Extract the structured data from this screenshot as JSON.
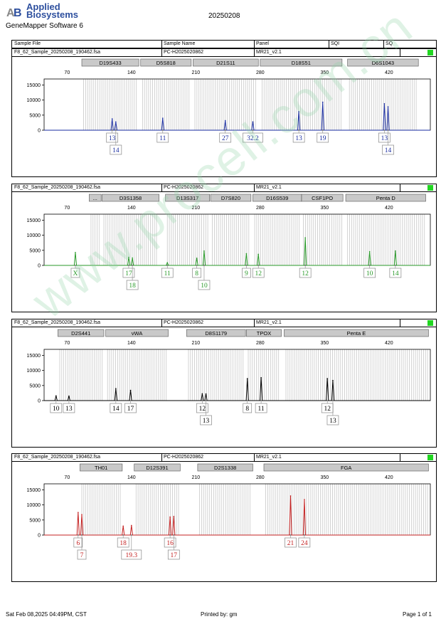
{
  "header": {
    "brand_line1": "Applied",
    "brand_line2": "Biosystems",
    "software": "GeneMapper Software 6",
    "date": "20250208"
  },
  "columns": [
    "Sample File",
    "Sample Name",
    "Panel",
    "SQI",
    "SQ"
  ],
  "sample": {
    "file": "F8_62_Sample_20250208_190462.fsa",
    "name": "PC-H2025020862",
    "panel": "MR21_v2.1"
  },
  "footer": {
    "left": "Sat Feb 08,2025 04:49PM, CST",
    "center": "Printed by: gm",
    "right": "Page 1 of 1"
  },
  "watermark": "www.procell.com.cn",
  "chart_data": [
    {
      "type": "line",
      "color": "#1a2da0",
      "x_ticks": [
        70,
        140,
        210,
        280,
        350,
        420
      ],
      "y_ticks": [
        0,
        5000,
        10000,
        15000
      ],
      "ylim": [
        0,
        17000
      ],
      "xlim": [
        45,
        465
      ],
      "markers": [
        {
          "label": "D19S433",
          "start": 86,
          "end": 148
        },
        {
          "label": "D5S818",
          "start": 150,
          "end": 205
        },
        {
          "label": "D21S11",
          "start": 207,
          "end": 278
        },
        {
          "label": "D18S51",
          "start": 280,
          "end": 369
        },
        {
          "label": "D6S1043",
          "start": 375,
          "end": 452
        }
      ],
      "peaks": [
        {
          "x": 119,
          "y": 3800
        },
        {
          "x": 123,
          "y": 2800
        },
        {
          "x": 174,
          "y": 4000
        },
        {
          "x": 242,
          "y": 3200
        },
        {
          "x": 272,
          "y": 2800
        },
        {
          "x": 322,
          "y": 6200
        },
        {
          "x": 348,
          "y": 9300
        },
        {
          "x": 415,
          "y": 8800
        },
        {
          "x": 419,
          "y": 7800
        }
      ],
      "alleles": [
        {
          "x": 119,
          "label": "13",
          "row": 1
        },
        {
          "x": 123,
          "label": "14",
          "row": 2
        },
        {
          "x": 174,
          "label": "11",
          "row": 1
        },
        {
          "x": 242,
          "label": "27",
          "row": 1
        },
        {
          "x": 272,
          "label": "32.2",
          "row": 1
        },
        {
          "x": 322,
          "label": "13",
          "row": 1
        },
        {
          "x": 348,
          "label": "19",
          "row": 1
        },
        {
          "x": 415,
          "label": "13",
          "row": 1
        },
        {
          "x": 419,
          "label": "14",
          "row": 2
        }
      ]
    },
    {
      "type": "line",
      "color": "#2a9a2a",
      "x_ticks": [
        70,
        140,
        210,
        280,
        350,
        420
      ],
      "y_ticks": [
        0,
        5000,
        10000,
        15000
      ],
      "ylim": [
        0,
        17000
      ],
      "xlim": [
        45,
        465
      ],
      "markers": [
        {
          "label": "...",
          "start": 94,
          "end": 107
        },
        {
          "label": "D3S1358",
          "start": 108,
          "end": 170
        },
        {
          "label": "D13S317",
          "start": 177,
          "end": 225
        },
        {
          "label": "D7S820",
          "start": 226,
          "end": 270
        },
        {
          "label": "D16S539",
          "start": 272,
          "end": 325
        },
        {
          "label": "CSF1PO",
          "start": 325,
          "end": 370
        },
        {
          "label": "Penta D",
          "start": 373,
          "end": 460
        }
      ],
      "peaks": [
        {
          "x": 79,
          "y": 4300
        },
        {
          "x": 137,
          "y": 2700
        },
        {
          "x": 141,
          "y": 2500
        },
        {
          "x": 179,
          "y": 900
        },
        {
          "x": 211,
          "y": 2400
        },
        {
          "x": 219,
          "y": 4800
        },
        {
          "x": 265,
          "y": 3900
        },
        {
          "x": 278,
          "y": 3700
        },
        {
          "x": 329,
          "y": 9200
        },
        {
          "x": 399,
          "y": 4600
        },
        {
          "x": 427,
          "y": 4800
        }
      ],
      "alleles": [
        {
          "x": 79,
          "label": "X",
          "row": 1
        },
        {
          "x": 137,
          "label": "17",
          "row": 1
        },
        {
          "x": 141,
          "label": "18",
          "row": 2
        },
        {
          "x": 179,
          "label": "11",
          "row": 1
        },
        {
          "x": 211,
          "label": "8",
          "row": 1
        },
        {
          "x": 219,
          "label": "10",
          "row": 2
        },
        {
          "x": 265,
          "label": "9",
          "row": 1
        },
        {
          "x": 278,
          "label": "12",
          "row": 1
        },
        {
          "x": 329,
          "label": "12",
          "row": 1
        },
        {
          "x": 399,
          "label": "10",
          "row": 1
        },
        {
          "x": 427,
          "label": "14",
          "row": 1
        }
      ]
    },
    {
      "type": "line",
      "color": "#000000",
      "x_ticks": [
        70,
        140,
        210,
        280,
        350,
        420
      ],
      "y_ticks": [
        0,
        5000,
        10000,
        15000
      ],
      "ylim": [
        0,
        17000
      ],
      "xlim": [
        45,
        465
      ],
      "markers": [
        {
          "label": "D2S441",
          "start": 60,
          "end": 110
        },
        {
          "label": "vWA",
          "start": 112,
          "end": 180
        },
        {
          "label": "D8S1179",
          "start": 200,
          "end": 264
        },
        {
          "label": "TPOX",
          "start": 265,
          "end": 303
        },
        {
          "label": "Penta E",
          "start": 306,
          "end": 463
        }
      ],
      "peaks": [
        {
          "x": 58,
          "y": 1600
        },
        {
          "x": 72,
          "y": 1500
        },
        {
          "x": 123,
          "y": 4000
        },
        {
          "x": 139,
          "y": 3400
        },
        {
          "x": 217,
          "y": 2300
        },
        {
          "x": 221,
          "y": 2200
        },
        {
          "x": 266,
          "y": 7300
        },
        {
          "x": 281,
          "y": 7600
        },
        {
          "x": 353,
          "y": 7300
        },
        {
          "x": 359,
          "y": 6700
        }
      ],
      "alleles": [
        {
          "x": 58,
          "label": "10",
          "row": 1
        },
        {
          "x": 72,
          "label": "13",
          "row": 1
        },
        {
          "x": 123,
          "label": "14",
          "row": 1
        },
        {
          "x": 139,
          "label": "17",
          "row": 1
        },
        {
          "x": 217,
          "label": "12",
          "row": 1
        },
        {
          "x": 221,
          "label": "13",
          "row": 2
        },
        {
          "x": 266,
          "label": "8",
          "row": 1
        },
        {
          "x": 281,
          "label": "11",
          "row": 1
        },
        {
          "x": 353,
          "label": "12",
          "row": 1
        },
        {
          "x": 359,
          "label": "13",
          "row": 2
        }
      ]
    },
    {
      "type": "line",
      "color": "#c42020",
      "x_ticks": [
        70,
        140,
        210,
        280,
        350,
        420
      ],
      "y_ticks": [
        0,
        5000,
        10000,
        15000
      ],
      "ylim": [
        0,
        17000
      ],
      "xlim": [
        45,
        465
      ],
      "markers": [
        {
          "label": "TH01",
          "start": 84,
          "end": 130
        },
        {
          "label": "D12S391",
          "start": 143,
          "end": 193
        },
        {
          "label": "D2S1338",
          "start": 212,
          "end": 272
        },
        {
          "label": "FGA",
          "start": 284,
          "end": 463
        }
      ],
      "peaks": [
        {
          "x": 82,
          "y": 7500
        },
        {
          "x": 86,
          "y": 6800
        },
        {
          "x": 131,
          "y": 3000
        },
        {
          "x": 140,
          "y": 3200
        },
        {
          "x": 182,
          "y": 6000
        },
        {
          "x": 186,
          "y": 6200
        },
        {
          "x": 313,
          "y": 13000
        },
        {
          "x": 328,
          "y": 11800
        }
      ],
      "alleles": [
        {
          "x": 82,
          "label": "6",
          "row": 1
        },
        {
          "x": 86,
          "label": "7",
          "row": 2
        },
        {
          "x": 131,
          "label": "18",
          "row": 1
        },
        {
          "x": 140,
          "label": "19.3",
          "row": 2
        },
        {
          "x": 182,
          "label": "16",
          "row": 1
        },
        {
          "x": 186,
          "label": "17",
          "row": 2
        },
        {
          "x": 313,
          "label": "21",
          "row": 1
        },
        {
          "x": 328,
          "label": "24",
          "row": 1
        }
      ]
    }
  ]
}
